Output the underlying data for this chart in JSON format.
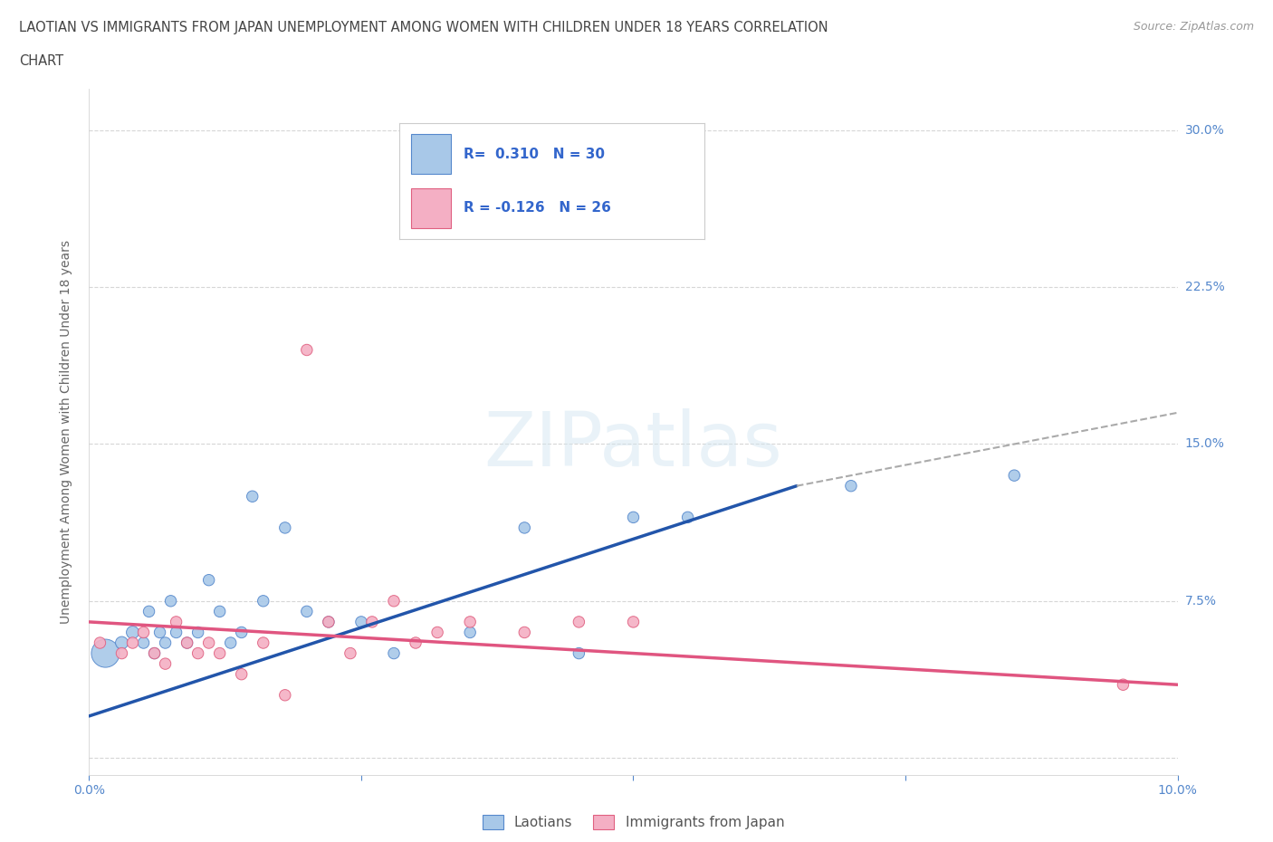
{
  "title_line1": "LAOTIAN VS IMMIGRANTS FROM JAPAN UNEMPLOYMENT AMONG WOMEN WITH CHILDREN UNDER 18 YEARS CORRELATION",
  "title_line2": "CHART",
  "source_text": "Source: ZipAtlas.com",
  "ylabel": "Unemployment Among Women with Children Under 18 years",
  "blue_color": "#a8c8e8",
  "blue_edge_color": "#5588cc",
  "pink_color": "#f4afc4",
  "pink_edge_color": "#e06080",
  "blue_line_color": "#2255aa",
  "pink_line_color": "#e05580",
  "xlim": [
    0.0,
    10.0
  ],
  "ylim": [
    -0.8,
    32.0
  ],
  "ytick_positions": [
    0.0,
    7.5,
    15.0,
    22.5,
    30.0
  ],
  "ytick_labels": [
    "",
    "7.5%",
    "15.0%",
    "22.5%",
    "30.0%"
  ],
  "xtick_positions": [
    0.0,
    2.5,
    5.0,
    7.5,
    10.0
  ],
  "xtick_labels": [
    "0.0%",
    "",
    "",
    "",
    "10.0%"
  ],
  "blue_scatter_x": [
    0.15,
    0.3,
    0.4,
    0.5,
    0.55,
    0.6,
    0.65,
    0.7,
    0.75,
    0.8,
    0.9,
    1.0,
    1.1,
    1.2,
    1.3,
    1.4,
    1.5,
    1.6,
    1.8,
    2.0,
    2.2,
    2.5,
    2.8,
    3.5,
    4.0,
    4.5,
    5.0,
    5.5,
    7.0,
    8.5
  ],
  "blue_scatter_y": [
    5.0,
    5.5,
    6.0,
    5.5,
    7.0,
    5.0,
    6.0,
    5.5,
    7.5,
    6.0,
    5.5,
    6.0,
    8.5,
    7.0,
    5.5,
    6.0,
    12.5,
    7.5,
    11.0,
    7.0,
    6.5,
    6.5,
    5.0,
    6.0,
    11.0,
    5.0,
    11.5,
    11.5,
    13.0,
    13.5
  ],
  "blue_scatter_size": [
    500,
    100,
    100,
    80,
    80,
    80,
    80,
    80,
    80,
    80,
    80,
    80,
    80,
    80,
    80,
    80,
    80,
    80,
    80,
    80,
    80,
    80,
    80,
    80,
    80,
    80,
    80,
    80,
    80,
    80
  ],
  "pink_scatter_x": [
    0.1,
    0.3,
    0.4,
    0.5,
    0.6,
    0.7,
    0.8,
    0.9,
    1.0,
    1.1,
    1.2,
    1.4,
    1.6,
    1.8,
    2.0,
    2.2,
    2.4,
    2.6,
    2.8,
    3.0,
    3.2,
    3.5,
    4.0,
    4.5,
    5.0,
    9.5
  ],
  "pink_scatter_y": [
    5.5,
    5.0,
    5.5,
    6.0,
    5.0,
    4.5,
    6.5,
    5.5,
    5.0,
    5.5,
    5.0,
    4.0,
    5.5,
    3.0,
    19.5,
    6.5,
    5.0,
    6.5,
    7.5,
    5.5,
    6.0,
    6.5,
    6.0,
    6.5,
    6.5,
    3.5
  ],
  "pink_scatter_size": [
    80,
    80,
    80,
    80,
    80,
    80,
    80,
    80,
    80,
    80,
    80,
    80,
    80,
    80,
    80,
    80,
    80,
    80,
    80,
    80,
    80,
    80,
    80,
    80,
    80,
    80
  ],
  "blue_trend_x0": 0.0,
  "blue_trend_y0": 2.0,
  "blue_trend_x1": 6.5,
  "blue_trend_y1": 13.0,
  "blue_dash_x0": 6.5,
  "blue_dash_y0": 13.0,
  "blue_dash_x1": 10.0,
  "blue_dash_y1": 16.5,
  "pink_trend_x0": 0.0,
  "pink_trend_y0": 6.5,
  "pink_trend_x1": 10.0,
  "pink_trend_y1": 3.5,
  "legend_blue_r": "R=  0.310",
  "legend_blue_n": "N = 30",
  "legend_pink_r": "R = -0.126",
  "legend_pink_n": "N = 26",
  "legend_text_color": "#3366cc",
  "watermark": "ZIPatlas",
  "bg_color": "#ffffff",
  "grid_color": "#cccccc",
  "axis_label_color": "#5588cc",
  "title_color": "#444444",
  "source_color": "#999999"
}
